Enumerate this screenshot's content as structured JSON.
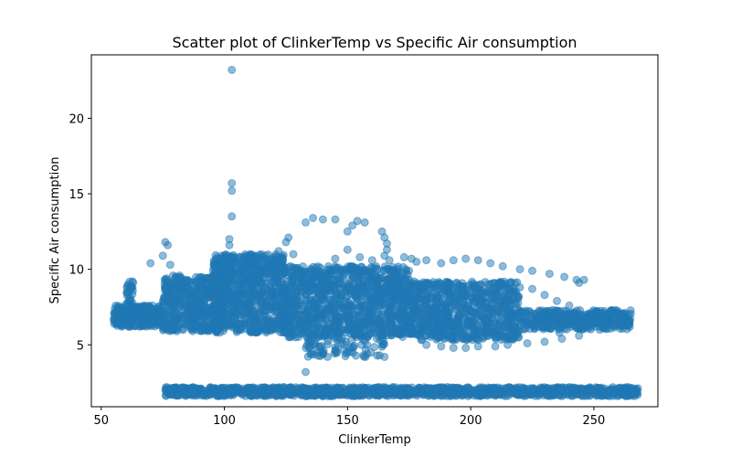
{
  "chart_data": {
    "type": "scatter",
    "title": "Scatter plot of ClinkerTemp vs Specific Air consumption",
    "xlabel": "ClinkerTemp",
    "ylabel": "Specific Air consumption",
    "xlim": [
      46,
      276
    ],
    "ylim": [
      0.9,
      24.2
    ],
    "xticks": [
      50,
      100,
      150,
      200,
      250
    ],
    "yticks": [
      5,
      10,
      15,
      20
    ],
    "grid": false,
    "legend": "none",
    "color": "#1f77b4",
    "alpha": 0.5,
    "bands": [
      {
        "xmin": 55,
        "xmax": 75,
        "ymin": 6.2,
        "ymax": 7.6,
        "n": 260
      },
      {
        "xmin": 60,
        "xmax": 63,
        "ymin": 7.0,
        "ymax": 9.2,
        "n": 40
      },
      {
        "xmin": 75,
        "xmax": 100,
        "ymin": 5.9,
        "ymax": 9.6,
        "n": 520
      },
      {
        "xmin": 95,
        "xmax": 125,
        "ymin": 5.8,
        "ymax": 11.0,
        "n": 800
      },
      {
        "xmin": 125,
        "xmax": 175,
        "ymin": 5.5,
        "ymax": 10.2,
        "n": 1100
      },
      {
        "xmin": 175,
        "xmax": 220,
        "ymin": 5.3,
        "ymax": 9.2,
        "n": 800
      },
      {
        "xmin": 220,
        "xmax": 265,
        "ymin": 6.0,
        "ymax": 7.3,
        "n": 380
      },
      {
        "xmin": 133,
        "xmax": 165,
        "ymin": 4.2,
        "ymax": 5.6,
        "n": 80
      },
      {
        "xmin": 76,
        "xmax": 268,
        "ymin": 1.6,
        "ymax": 2.2,
        "n": 1400
      }
    ],
    "points": [
      [
        103,
        23.2
      ],
      [
        103,
        15.7
      ],
      [
        103,
        15.2
      ],
      [
        103,
        13.5
      ],
      [
        102,
        12.0
      ],
      [
        102,
        11.6
      ],
      [
        133,
        13.1
      ],
      [
        136,
        13.4
      ],
      [
        140,
        13.3
      ],
      [
        145,
        13.3
      ],
      [
        152,
        12.9
      ],
      [
        154,
        13.2
      ],
      [
        157,
        13.1
      ],
      [
        150,
        12.5
      ],
      [
        126,
        12.1
      ],
      [
        125,
        11.8
      ],
      [
        128,
        11.0
      ],
      [
        122,
        11.2
      ],
      [
        164,
        12.5
      ],
      [
        165,
        12.1
      ],
      [
        166,
        11.7
      ],
      [
        166,
        11.3
      ],
      [
        165,
        10.9
      ],
      [
        167,
        10.6
      ],
      [
        76,
        11.8
      ],
      [
        77,
        11.6
      ],
      [
        75,
        10.9
      ],
      [
        78,
        10.3
      ],
      [
        70,
        10.4
      ],
      [
        173,
        10.8
      ],
      [
        176,
        10.7
      ],
      [
        178,
        10.5
      ],
      [
        182,
        10.6
      ],
      [
        188,
        10.4
      ],
      [
        193,
        10.6
      ],
      [
        198,
        10.7
      ],
      [
        203,
        10.6
      ],
      [
        208,
        10.4
      ],
      [
        213,
        10.2
      ],
      [
        220,
        10.0
      ],
      [
        225,
        9.9
      ],
      [
        232,
        9.7
      ],
      [
        238,
        9.5
      ],
      [
        243,
        9.3
      ],
      [
        246,
        9.3
      ],
      [
        244,
        9.1
      ],
      [
        150,
        11.3
      ],
      [
        155,
        10.8
      ],
      [
        160,
        10.6
      ],
      [
        145,
        10.7
      ],
      [
        182,
        5.0
      ],
      [
        188,
        4.9
      ],
      [
        193,
        4.8
      ],
      [
        198,
        4.8
      ],
      [
        203,
        4.9
      ],
      [
        210,
        4.9
      ],
      [
        215,
        5.0
      ],
      [
        223,
        5.1
      ],
      [
        230,
        5.2
      ],
      [
        237,
        5.4
      ],
      [
        244,
        5.6
      ],
      [
        133,
        3.2
      ],
      [
        135,
        4.4
      ],
      [
        140,
        4.5
      ],
      [
        145,
        4.6
      ],
      [
        150,
        4.5
      ],
      [
        158,
        4.4
      ],
      [
        163,
        4.3
      ],
      [
        165,
        4.2
      ],
      [
        205,
        8.5
      ],
      [
        210,
        8.7
      ],
      [
        215,
        8.8
      ],
      [
        220,
        8.8
      ],
      [
        225,
        8.7
      ],
      [
        230,
        8.3
      ],
      [
        235,
        7.9
      ],
      [
        240,
        7.6
      ],
      [
        226,
        6.3
      ],
      [
        236,
        5.8
      ],
      [
        243,
        6.1
      ]
    ]
  }
}
